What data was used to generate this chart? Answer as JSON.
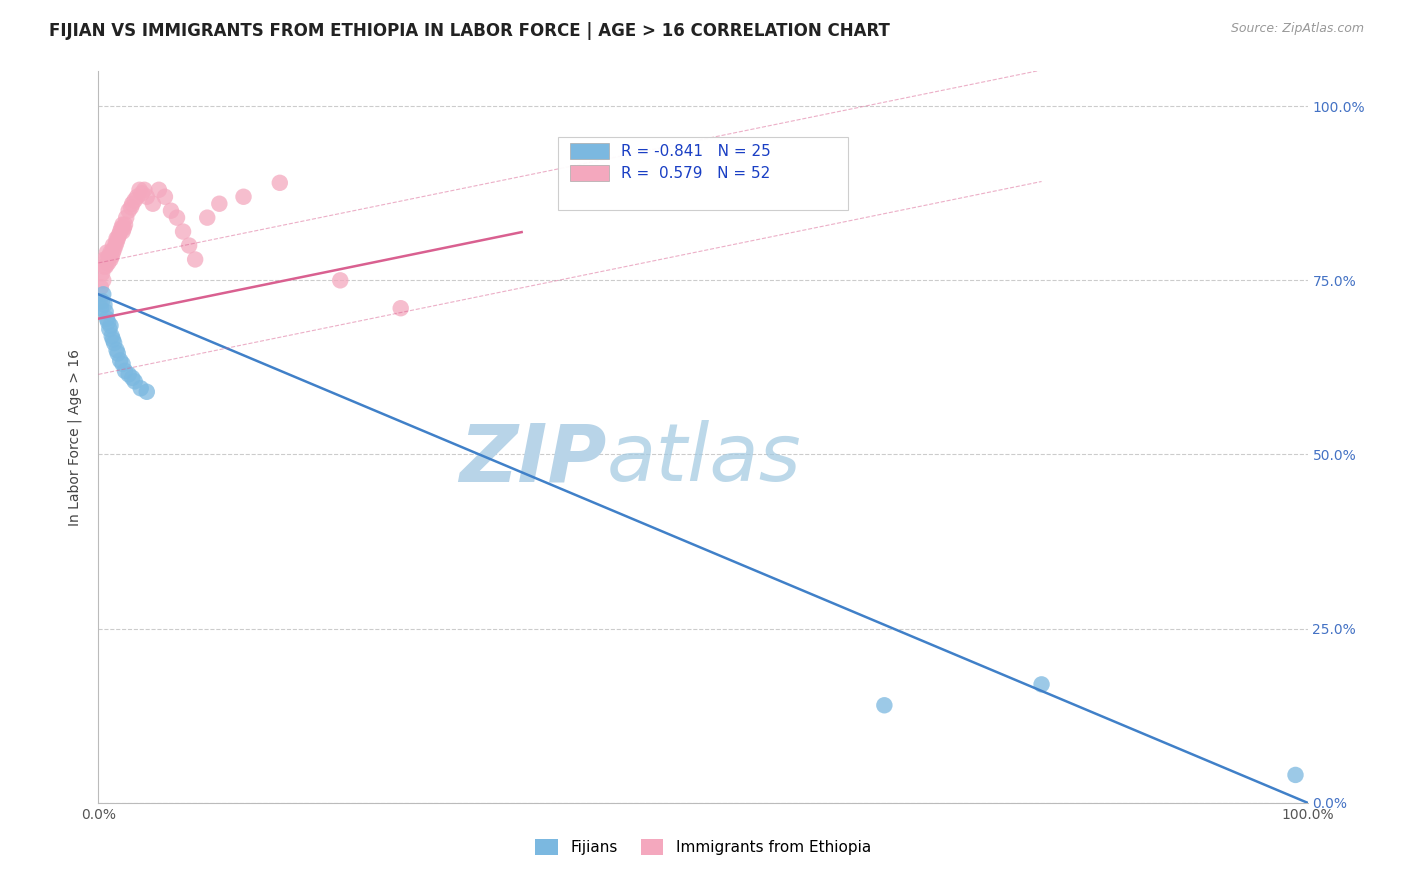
{
  "title": "FIJIAN VS IMMIGRANTS FROM ETHIOPIA IN LABOR FORCE | AGE > 16 CORRELATION CHART",
  "source_text": "Source: ZipAtlas.com",
  "xlabel": "",
  "ylabel": "In Labor Force | Age > 16",
  "background_color": "#ffffff",
  "plot_bg_color": "#ffffff",
  "grid_color": "#cccccc",
  "fijian_color": "#7bb8e0",
  "ethiopia_color": "#f4a8be",
  "fijian_line_color": "#4080c8",
  "ethiopia_line_color": "#d96090",
  "fijian_R": -0.841,
  "fijian_N": 25,
  "ethiopia_R": 0.579,
  "ethiopia_N": 52,
  "legend_R_color": "#1a3fc4",
  "fijian_scatter_x": [
    0.002,
    0.003,
    0.004,
    0.005,
    0.006,
    0.007,
    0.008,
    0.009,
    0.01,
    0.011,
    0.012,
    0.013,
    0.015,
    0.016,
    0.018,
    0.02,
    0.022,
    0.025,
    0.028,
    0.03,
    0.035,
    0.04,
    0.65,
    0.78,
    0.99
  ],
  "fijian_scatter_y": [
    0.71,
    0.72,
    0.73,
    0.715,
    0.705,
    0.695,
    0.69,
    0.68,
    0.685,
    0.67,
    0.665,
    0.66,
    0.65,
    0.645,
    0.635,
    0.63,
    0.62,
    0.615,
    0.61,
    0.605,
    0.595,
    0.59,
    0.14,
    0.17,
    0.04
  ],
  "ethiopia_scatter_x": [
    0.001,
    0.002,
    0.003,
    0.004,
    0.005,
    0.005,
    0.006,
    0.007,
    0.007,
    0.008,
    0.009,
    0.01,
    0.01,
    0.011,
    0.012,
    0.012,
    0.013,
    0.014,
    0.015,
    0.015,
    0.016,
    0.017,
    0.018,
    0.019,
    0.02,
    0.02,
    0.021,
    0.022,
    0.023,
    0.025,
    0.027,
    0.028,
    0.03,
    0.032,
    0.034,
    0.036,
    0.038,
    0.04,
    0.045,
    0.05,
    0.055,
    0.06,
    0.065,
    0.07,
    0.075,
    0.08,
    0.09,
    0.1,
    0.12,
    0.15,
    0.2,
    0.25
  ],
  "ethiopia_scatter_y": [
    0.72,
    0.74,
    0.76,
    0.75,
    0.77,
    0.78,
    0.77,
    0.78,
    0.79,
    0.775,
    0.785,
    0.78,
    0.79,
    0.785,
    0.79,
    0.8,
    0.795,
    0.8,
    0.805,
    0.81,
    0.81,
    0.815,
    0.82,
    0.825,
    0.82,
    0.83,
    0.825,
    0.83,
    0.84,
    0.85,
    0.855,
    0.86,
    0.865,
    0.87,
    0.88,
    0.875,
    0.88,
    0.87,
    0.86,
    0.88,
    0.87,
    0.85,
    0.84,
    0.82,
    0.8,
    0.78,
    0.84,
    0.86,
    0.87,
    0.89,
    0.75,
    0.71
  ],
  "xlim": [
    0.0,
    1.0
  ],
  "ylim": [
    0.0,
    1.05
  ],
  "yticks": [
    0.0,
    0.25,
    0.5,
    0.75,
    1.0
  ],
  "ytick_labels_right": [
    "0.0%",
    "25.0%",
    "50.0%",
    "75.0%",
    "100.0%"
  ],
  "xticks": [
    0.0,
    1.0
  ],
  "xtick_labels": [
    "0.0%",
    "100.0%"
  ],
  "watermark_zip": "ZIP",
  "watermark_atlas": "atlas",
  "watermark_color": "#c8dff0"
}
